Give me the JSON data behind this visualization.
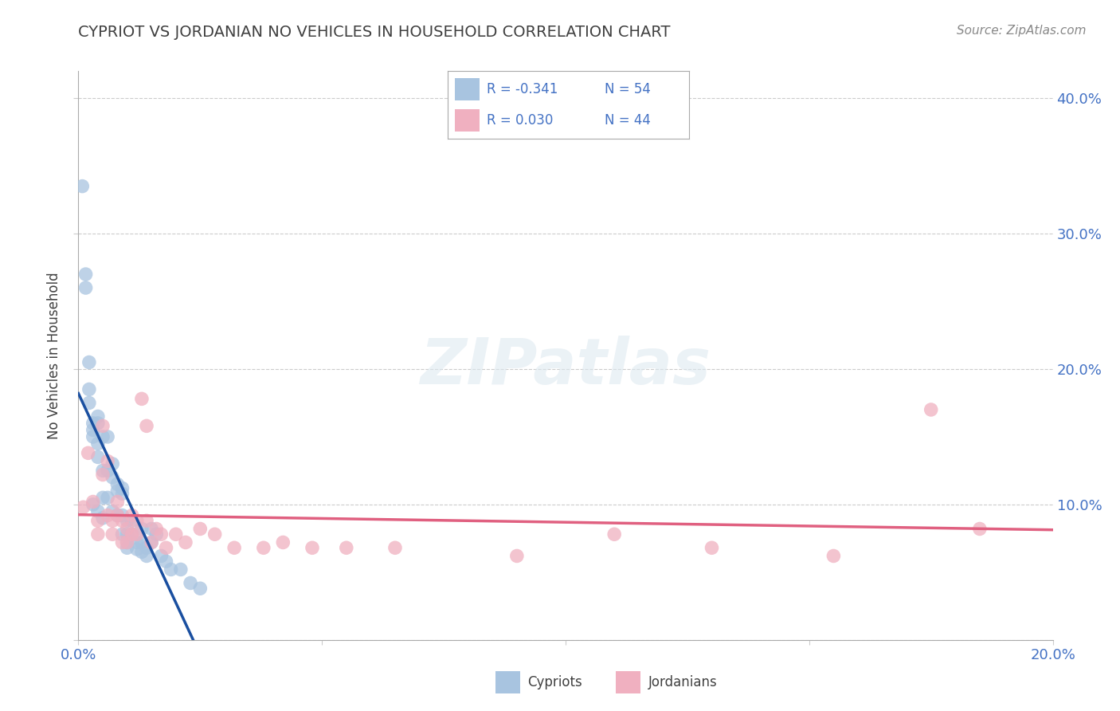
{
  "title": "CYPRIOT VS JORDANIAN NO VEHICLES IN HOUSEHOLD CORRELATION CHART",
  "source": "Source: ZipAtlas.com",
  "ylabel": "No Vehicles in Household",
  "xlim": [
    0.0,
    0.2
  ],
  "ylim": [
    0.0,
    0.42
  ],
  "grid_color": "#cccccc",
  "background_color": "#ffffff",
  "cypriot_color": "#a8c4e0",
  "jordanian_color": "#f0b0c0",
  "cypriot_line_color": "#1a4fa0",
  "jordanian_line_color": "#e06080",
  "label_color": "#4472c4",
  "title_color": "#404040",
  "watermark": "ZIPatlas",
  "cypriot_x": [
    0.0008,
    0.0015,
    0.0015,
    0.0022,
    0.0022,
    0.0022,
    0.003,
    0.003,
    0.003,
    0.003,
    0.004,
    0.004,
    0.004,
    0.004,
    0.004,
    0.005,
    0.005,
    0.005,
    0.005,
    0.006,
    0.006,
    0.006,
    0.007,
    0.007,
    0.007,
    0.008,
    0.008,
    0.008,
    0.009,
    0.009,
    0.009,
    0.009,
    0.01,
    0.01,
    0.01,
    0.01,
    0.011,
    0.011,
    0.012,
    0.012,
    0.013,
    0.013,
    0.013,
    0.014,
    0.014,
    0.015,
    0.015,
    0.016,
    0.017,
    0.018,
    0.019,
    0.021,
    0.023,
    0.025
  ],
  "cypriot_y": [
    0.335,
    0.27,
    0.26,
    0.205,
    0.185,
    0.175,
    0.16,
    0.155,
    0.15,
    0.1,
    0.165,
    0.16,
    0.145,
    0.135,
    0.095,
    0.15,
    0.125,
    0.105,
    0.09,
    0.15,
    0.125,
    0.105,
    0.13,
    0.12,
    0.095,
    0.115,
    0.11,
    0.092,
    0.112,
    0.108,
    0.092,
    0.078,
    0.088,
    0.078,
    0.072,
    0.068,
    0.088,
    0.078,
    0.072,
    0.067,
    0.082,
    0.072,
    0.065,
    0.068,
    0.062,
    0.082,
    0.072,
    0.078,
    0.062,
    0.058,
    0.052,
    0.052,
    0.042,
    0.038
  ],
  "jordanian_x": [
    0.001,
    0.002,
    0.003,
    0.004,
    0.004,
    0.005,
    0.005,
    0.006,
    0.006,
    0.007,
    0.007,
    0.008,
    0.008,
    0.009,
    0.009,
    0.01,
    0.01,
    0.011,
    0.011,
    0.012,
    0.012,
    0.013,
    0.014,
    0.014,
    0.015,
    0.016,
    0.017,
    0.018,
    0.02,
    0.022,
    0.025,
    0.028,
    0.032,
    0.038,
    0.042,
    0.048,
    0.055,
    0.065,
    0.09,
    0.11,
    0.13,
    0.155,
    0.175,
    0.185
  ],
  "jordanian_y": [
    0.098,
    0.138,
    0.102,
    0.088,
    0.078,
    0.158,
    0.122,
    0.132,
    0.092,
    0.088,
    0.078,
    0.102,
    0.092,
    0.088,
    0.072,
    0.082,
    0.072,
    0.092,
    0.078,
    0.088,
    0.078,
    0.178,
    0.158,
    0.088,
    0.072,
    0.082,
    0.078,
    0.068,
    0.078,
    0.072,
    0.082,
    0.078,
    0.068,
    0.068,
    0.072,
    0.068,
    0.068,
    0.068,
    0.062,
    0.078,
    0.068,
    0.062,
    0.17,
    0.082
  ]
}
